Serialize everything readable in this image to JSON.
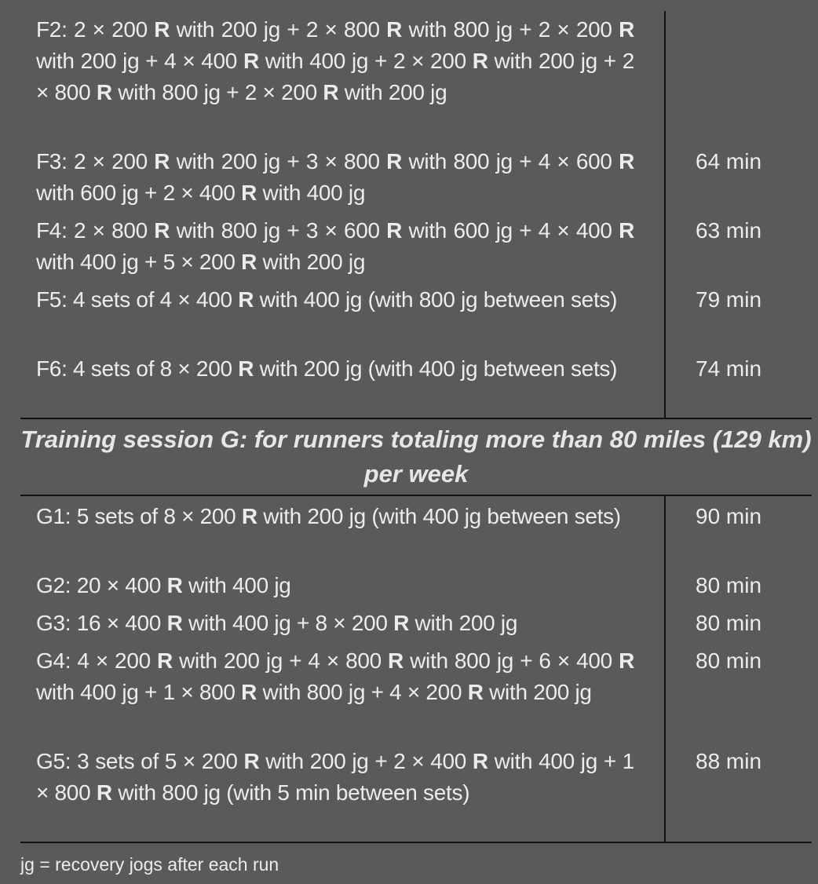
{
  "table": {
    "section_f_rows": [
      {
        "id": "F2",
        "parts": [
          "F2: 2 × 200 ",
          "R",
          " with 200 jg + 2 × 800 ",
          "R",
          " with 800 jg + 2 × 200 ",
          "R",
          " with 200 jg + 4 × 400 ",
          "R",
          " with 400 jg + 2 × 200 ",
          "R",
          " with 200 jg + 2 × 800 ",
          "R",
          " with 800 jg + 2 × 200 ",
          "R",
          " with 200 jg"
        ],
        "duration": ""
      },
      {
        "id": "F3",
        "parts": [
          "F3: 2 × 200 ",
          "R",
          " with 200 jg + 3 × 800 ",
          "R",
          " with 800 jg + 4 × 600 ",
          "R",
          " with 600 jg + 2 × 400 ",
          "R",
          " with 400 jg"
        ],
        "duration": "64 min"
      },
      {
        "id": "F4",
        "parts": [
          "F4: 2 × 800 ",
          "R",
          " with 800 jg + 3 × 600 ",
          "R",
          " with 600 jg + 4 × 400 ",
          "R",
          " with 400 jg + 5 × 200 ",
          "R",
          " with 200 jg"
        ],
        "duration": "63 min"
      },
      {
        "id": "F5",
        "parts": [
          "F5: 4 sets of 4 × 400 ",
          "R",
          " with 400 jg (with 800 jg between sets)"
        ],
        "duration": "79 min"
      },
      {
        "id": "F6",
        "parts": [
          "F6: 4 sets of 8 × 200 ",
          "R",
          " with 200 jg (with 400 jg between sets)"
        ],
        "duration": "74 min"
      }
    ],
    "section_g_heading": "Training session G: for runners totaling more than 80 miles (129 km) per week",
    "section_g_rows": [
      {
        "id": "G1",
        "parts": [
          "G1: 5 sets of 8 × 200 ",
          "R",
          " with 200 jg (with 400 jg between sets)"
        ],
        "duration": "90 min"
      },
      {
        "id": "G2",
        "parts": [
          "G2: 20 × 400 ",
          "R",
          " with 400 jg"
        ],
        "duration": "80 min"
      },
      {
        "id": "G3",
        "parts": [
          "G3: 16 × 400 ",
          "R",
          " with 400 jg + 8 × 200 ",
          "R",
          " with 200 jg"
        ],
        "duration": "80 min"
      },
      {
        "id": "G4",
        "parts": [
          "G4: 4 × 200 ",
          "R",
          " with 200 jg + 4 × 800 ",
          "R",
          " with 800 jg + 6 × 400 ",
          "R",
          " with 400 jg + 1 × 800 ",
          "R",
          " with 800 jg + 4 × 200 ",
          "R",
          " with 200 jg"
        ],
        "duration": "80 min"
      },
      {
        "id": "G5",
        "parts": [
          "G5: 3 sets of 5 × 200 ",
          "R",
          " with 200 jg + 2 × 400 ",
          "R",
          " with 400 jg + 1 × 800 ",
          "R",
          " with 800 jg (with 5 min between sets)"
        ],
        "duration": "88 min"
      }
    ]
  },
  "footnote": "jg = recovery jogs after each run"
}
